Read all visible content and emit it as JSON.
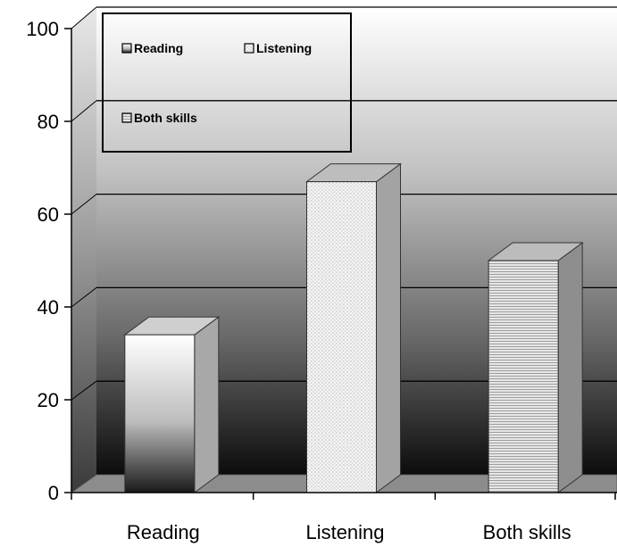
{
  "chart_data": {
    "type": "bar",
    "style": "3d-column",
    "categories": [
      "Reading",
      "Listening",
      "Both skills"
    ],
    "values": [
      34,
      67,
      50
    ],
    "ylim": [
      0,
      100
    ],
    "yticks": [
      "0",
      "20",
      "40",
      "60",
      "80",
      "100"
    ],
    "grid": true,
    "legend": {
      "placement": "top-left",
      "entries": [
        "Reading",
        "Listening",
        "Both skills"
      ]
    }
  }
}
